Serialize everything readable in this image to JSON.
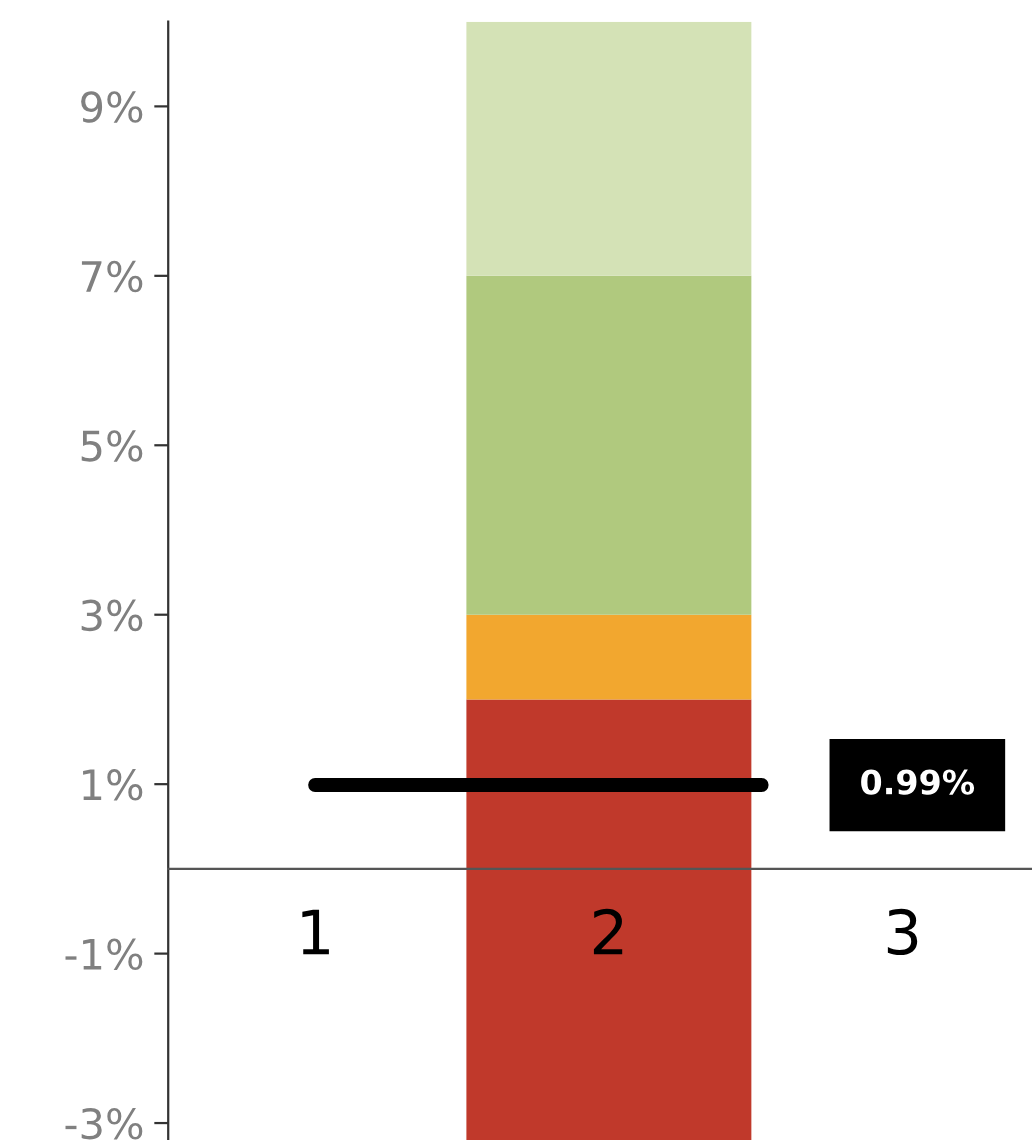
{
  "chart_data": {
    "type": "bar",
    "stacked": true,
    "categories": [
      "1",
      "2",
      "3"
    ],
    "series": [
      {
        "color": "#c0392b",
        "values": [
          null,
          -3.2,
          null
        ]
      },
      {
        "color": "#c0392b",
        "values": [
          null,
          2,
          null
        ]
      },
      {
        "color": "#f2a72f",
        "values": [
          null,
          1,
          null
        ]
      },
      {
        "color": "#b0c97e",
        "values": [
          null,
          4,
          null
        ]
      },
      {
        "color": "#d4e2b6",
        "values": [
          null,
          3,
          null
        ]
      }
    ],
    "ylim": [
      -3.2,
      10
    ],
    "yticks": [
      {
        "value": 9,
        "label": "9%"
      },
      {
        "value": 7,
        "label": "7%"
      },
      {
        "value": 5,
        "label": "5%"
      },
      {
        "value": 3,
        "label": "3%"
      },
      {
        "value": 1,
        "label": "1%"
      },
      {
        "value": -1,
        "label": "-1%"
      },
      {
        "value": -3,
        "label": "-3%"
      }
    ],
    "ref_lines": [
      {
        "axis": "y",
        "value": 0.99,
        "label": "0.99%",
        "color": "#000000"
      }
    ],
    "grid": false,
    "legend": false
  }
}
